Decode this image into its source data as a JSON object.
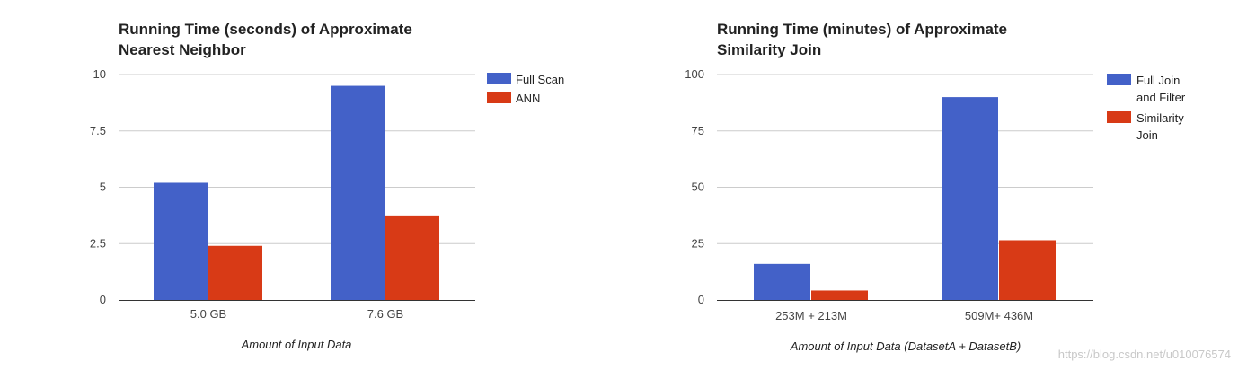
{
  "colors": {
    "series_a": "#4361c8",
    "series_b": "#d83a16"
  },
  "chart_data": [
    {
      "type": "bar",
      "title_lines": [
        "Running Time (seconds) of Approximate",
        "Nearest Neighbor"
      ],
      "categories": [
        "5.0 GB",
        "7.6 GB"
      ],
      "series": [
        {
          "name": "Full Scan",
          "values": [
            5.2,
            9.5
          ],
          "color": "#4361c8"
        },
        {
          "name": "ANN",
          "values": [
            2.4,
            3.75
          ],
          "color": "#d83a16"
        }
      ],
      "yticks": [
        "0",
        "2.5",
        "5",
        "7.5",
        "10"
      ],
      "ylim": [
        0,
        10
      ],
      "xlabel": "Amount of Input Data",
      "ylabel": "",
      "grid": true,
      "legend": "right"
    },
    {
      "type": "bar",
      "title_lines": [
        "Running Time (minutes) of Approximate",
        "Similarity Join"
      ],
      "categories": [
        "253M + 213M",
        "509M+ 436M"
      ],
      "series": [
        {
          "name_lines": [
            "Full Join",
            "and Filter"
          ],
          "values": [
            16,
            90
          ],
          "color": "#4361c8"
        },
        {
          "name_lines": [
            "Similarity",
            "Join"
          ],
          "values": [
            4.2,
            26.5
          ],
          "color": "#d83a16"
        }
      ],
      "yticks": [
        "0",
        "25",
        "50",
        "75",
        "100"
      ],
      "ylim": [
        0,
        100
      ],
      "xlabel": "Amount of Input Data (DatasetA + DatasetB)",
      "ylabel": "",
      "grid": true,
      "legend": "right"
    }
  ],
  "watermark": "https://blog.csdn.net/u010076574"
}
